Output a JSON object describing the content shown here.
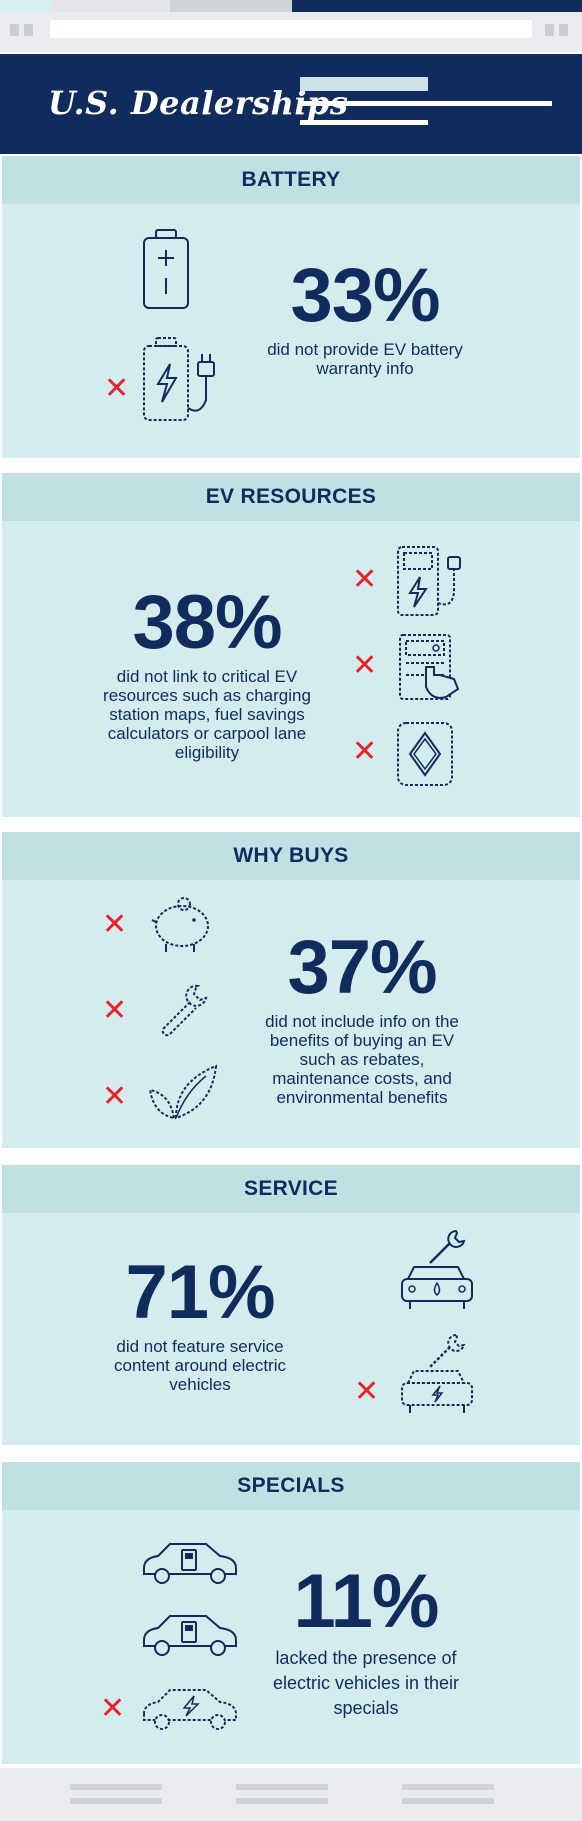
{
  "header": {
    "title": "U.S. Dealerships"
  },
  "sections": [
    {
      "title": "BATTERY",
      "stat": "33%",
      "description": "did not provide EV battery warranty info"
    },
    {
      "title": "EV RESOURCES",
      "stat": "38%",
      "description": "did not link to critical EV resources such as charging station maps, fuel savings calculators or carpool lane eligibility"
    },
    {
      "title": "WHY BUYS",
      "stat": "37%",
      "description": "did not include info on the benefits of buying an EV such as rebates, maintenance costs, and environmental benefits"
    },
    {
      "title": "SERVICE",
      "stat": "71%",
      "description": "did not feature service content around electric vehicles"
    },
    {
      "title": "SPECIALS",
      "stat": "11%",
      "description": "lacked the presence of electric vehicles in their specials"
    }
  ],
  "marks": {
    "x_symbol": "✕"
  },
  "colors": {
    "navy": "#0f2c5c",
    "panel": "#d4ecee",
    "panel_header": "#c0e0e3",
    "x_red": "#e8212b"
  },
  "icons": [
    "battery-icon",
    "battery-charging-plug-icon",
    "ev-charging-station-icon",
    "touchscreen-map-icon",
    "carpool-diamond-icon",
    "piggy-bank-icon",
    "wrench-icon",
    "leaf-icon",
    "car-wrench-fuel-icon",
    "ev-wrench-icon",
    "car-fuel-icon",
    "ev-car-icon"
  ]
}
